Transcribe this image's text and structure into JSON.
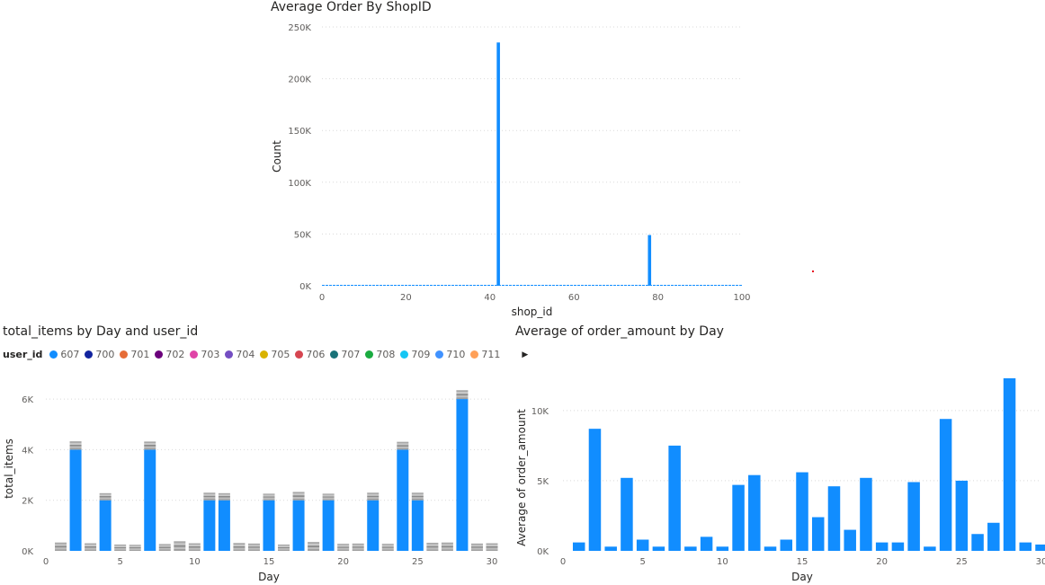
{
  "chart_data": [
    {
      "type": "bar",
      "title": "Average Order By ShopID",
      "xlabel": "shop_id",
      "ylabel": "Count",
      "xlim": [
        0,
        100
      ],
      "ylim": [
        0,
        250000
      ],
      "xticks": [
        "0",
        "20",
        "40",
        "60",
        "80",
        "100"
      ],
      "yticks": [
        "0K",
        "50K",
        "100K",
        "150K",
        "200K",
        "250K"
      ],
      "x": [
        42,
        78
      ],
      "values": [
        235000,
        49000
      ],
      "baseline_series_visible": true,
      "grid": true,
      "color": "#118DFF"
    },
    {
      "type": "bar",
      "stacked": true,
      "title": "total_items by Day and user_id",
      "xlabel": "Day",
      "ylabel": "total_items",
      "xlim": [
        0,
        30
      ],
      "ylim": [
        0,
        6500
      ],
      "xticks": [
        "0",
        "5",
        "10",
        "15",
        "20",
        "25",
        "30"
      ],
      "yticks": [
        "0K",
        "2K",
        "4K",
        "6K"
      ],
      "legend_title": "user_id",
      "legend": [
        {
          "name": "607",
          "color": "#118DFF"
        },
        {
          "name": "700",
          "color": "#12239E"
        },
        {
          "name": "701",
          "color": "#E66C37"
        },
        {
          "name": "702",
          "color": "#6B007B"
        },
        {
          "name": "703",
          "color": "#E044A7"
        },
        {
          "name": "704",
          "color": "#744EC2"
        },
        {
          "name": "705",
          "color": "#D9B300"
        },
        {
          "name": "706",
          "color": "#D64550"
        },
        {
          "name": "707",
          "color": "#197278"
        },
        {
          "name": "708",
          "color": "#1AAB40"
        },
        {
          "name": "709",
          "color": "#15C6F4"
        },
        {
          "name": "710",
          "color": "#4092FF"
        },
        {
          "name": "711",
          "color": "#FFA058"
        }
      ],
      "days": [
        1,
        2,
        3,
        4,
        5,
        6,
        7,
        8,
        9,
        10,
        11,
        12,
        13,
        14,
        15,
        16,
        17,
        18,
        19,
        20,
        21,
        22,
        23,
        24,
        25,
        26,
        27,
        28,
        29,
        30
      ],
      "user_607": [
        0,
        4000,
        0,
        2000,
        0,
        0,
        4000,
        0,
        0,
        0,
        2000,
        2000,
        0,
        0,
        2000,
        0,
        2000,
        0,
        2000,
        0,
        0,
        2000,
        0,
        4000,
        2000,
        0,
        0,
        6000,
        0,
        0
      ],
      "others_total": [
        330,
        330,
        300,
        280,
        250,
        240,
        320,
        270,
        380,
        300,
        300,
        280,
        310,
        290,
        260,
        250,
        330,
        350,
        260,
        280,
        290,
        300,
        280,
        310,
        300,
        320,
        330,
        350,
        290,
        300
      ],
      "grid": true
    },
    {
      "type": "bar",
      "title": "Average of order_amount by Day",
      "xlabel": "Day",
      "ylabel": "Average of order_amount",
      "xlim": [
        0,
        30
      ],
      "ylim": [
        0,
        13000
      ],
      "xticks": [
        "0",
        "5",
        "10",
        "15",
        "20",
        "25",
        "30"
      ],
      "yticks": [
        "0K",
        "5K",
        "10K"
      ],
      "days": [
        1,
        2,
        3,
        4,
        5,
        6,
        7,
        8,
        9,
        10,
        11,
        12,
        13,
        14,
        15,
        16,
        17,
        18,
        19,
        20,
        21,
        22,
        23,
        24,
        25,
        26,
        27,
        28,
        29,
        30
      ],
      "values": [
        600,
        8700,
        300,
        5200,
        800,
        300,
        7500,
        300,
        1000,
        300,
        4700,
        5400,
        300,
        800,
        5600,
        2400,
        4600,
        1500,
        5200,
        600,
        600,
        4900,
        300,
        9400,
        5000,
        1200,
        2000,
        12300,
        600,
        450
      ],
      "grid": true,
      "color": "#118DFF"
    }
  ],
  "colors": {
    "accent": "#118DFF",
    "stack_gray": "#A0A0A0",
    "red_mark": "#E81123"
  }
}
